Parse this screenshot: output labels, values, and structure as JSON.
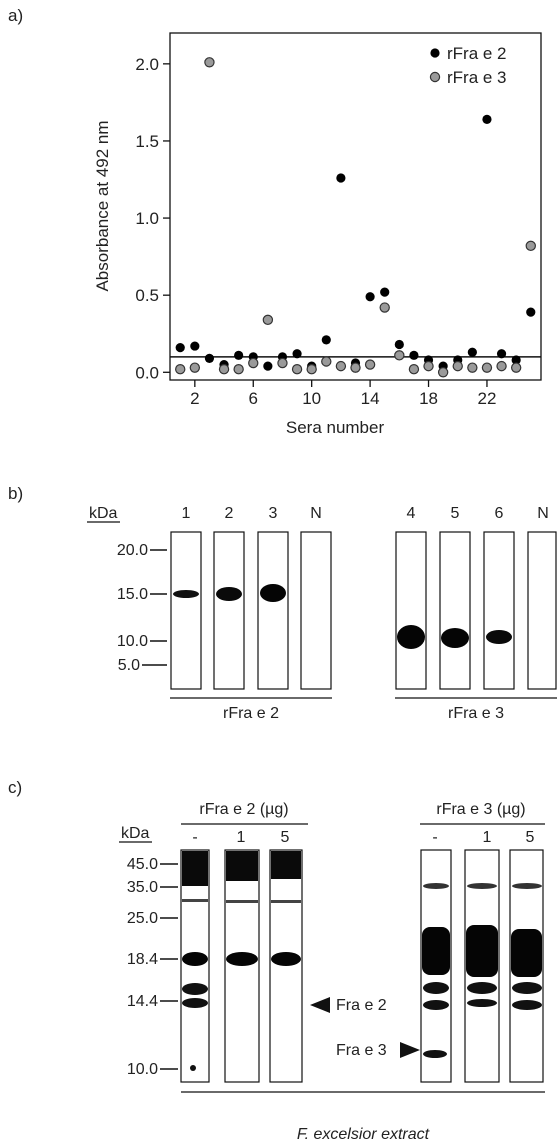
{
  "panels": {
    "a": "a)",
    "b": "b)",
    "c": "c)"
  },
  "chart_data": {
    "type": "scatter",
    "xlabel": "Sera number",
    "ylabel": "Absorbance at 492 nm",
    "xlim": [
      0.3,
      25.7
    ],
    "ylim": [
      -0.05,
      2.2
    ],
    "x_ticks": [
      2,
      6,
      10,
      14,
      18,
      22
    ],
    "y_ticks": [
      0.0,
      0.5,
      1.0,
      1.5,
      2.0
    ],
    "y_tick_labels": [
      "0.0",
      "0.5",
      "1.0",
      "1.5",
      "2.0"
    ],
    "cutoff": 0.1,
    "legend_position": "top-right",
    "series": [
      {
        "name": "rFra e 2",
        "color": "#000000",
        "x": [
          1,
          2,
          3,
          4,
          5,
          6,
          7,
          8,
          9,
          10,
          11,
          12,
          13,
          14,
          15,
          16,
          17,
          18,
          19,
          20,
          21,
          22,
          23,
          24,
          25
        ],
        "y": [
          0.16,
          0.17,
          0.09,
          0.05,
          0.11,
          0.1,
          0.04,
          0.1,
          0.12,
          0.04,
          0.21,
          1.26,
          0.06,
          0.49,
          0.52,
          0.18,
          0.11,
          0.08,
          0.04,
          0.08,
          0.13,
          1.64,
          0.12,
          0.08,
          0.39
        ]
      },
      {
        "name": "rFra e 3",
        "color": "#9a9a9a",
        "x": [
          1,
          2,
          3,
          4,
          5,
          6,
          7,
          8,
          9,
          10,
          11,
          12,
          13,
          14,
          15,
          16,
          17,
          18,
          19,
          20,
          21,
          22,
          23,
          24,
          25
        ],
        "y": [
          0.02,
          0.03,
          2.01,
          0.02,
          0.02,
          0.06,
          0.34,
          0.06,
          0.02,
          0.02,
          0.07,
          0.04,
          0.03,
          0.05,
          0.42,
          0.11,
          0.02,
          0.04,
          0.0,
          0.04,
          0.03,
          0.03,
          0.04,
          0.03,
          0.82
        ]
      }
    ]
  },
  "blot_b": {
    "kda_label": "kDa",
    "markers": [
      {
        "label": "20.0",
        "y": 228
      },
      {
        "label": "15.0",
        "y": 253
      },
      {
        "label": "10.0",
        "y": 277
      },
      {
        "label": "5.0",
        "y": 290
      }
    ],
    "lane_labels": [
      "1",
      "2",
      "3",
      "N",
      "4",
      "5",
      "6",
      "N"
    ],
    "group_labels": [
      "rFra e 2",
      "rFra e 3"
    ]
  },
  "blot_c": {
    "kda_label": "kDa",
    "markers": [
      "45.0",
      "35.0",
      "25.0",
      "18.4",
      "14.4",
      "10.0"
    ],
    "group_labels": [
      "rFra e 2 (µg)",
      "rFra e 3 (µg)"
    ],
    "lane_labels": [
      "-",
      "1",
      "5",
      "-",
      "1",
      "5"
    ],
    "arrow_labels": [
      "Fra e 2",
      "Fra e 3"
    ],
    "footer": "F. excelsior extract"
  }
}
